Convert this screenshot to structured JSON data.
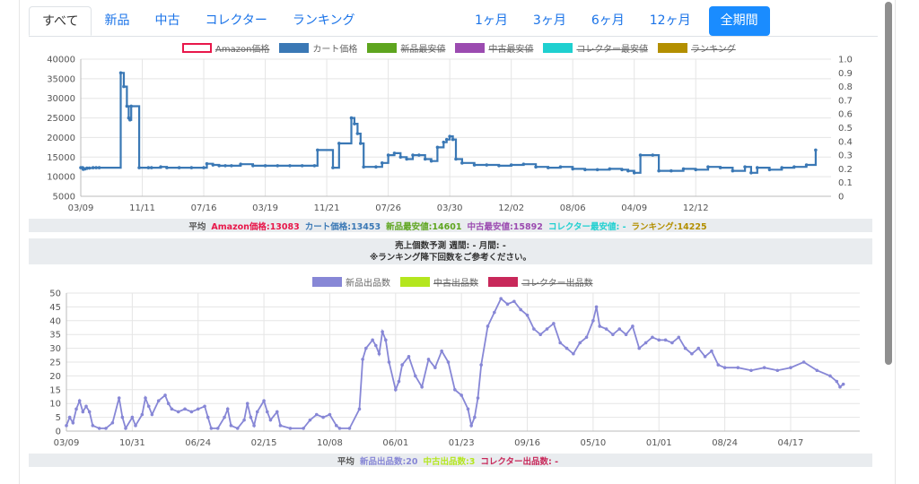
{
  "tabs": [
    "すべて",
    "新品",
    "中古",
    "コレクター",
    "ランキング"
  ],
  "periods": [
    "1ヶ月",
    "3ヶ月",
    "6ヶ月",
    "12ヶ月",
    "全期間"
  ],
  "price_legend": [
    {
      "label": "Amazon価格",
      "color": "#e8174a",
      "hidden": true,
      "outline": true
    },
    {
      "label": "カート価格",
      "color": "#3a78b5",
      "hidden": false
    },
    {
      "label": "新品最安値",
      "color": "#5ea51f",
      "hidden": true
    },
    {
      "label": "中古最安値",
      "color": "#9b4bb0",
      "hidden": true
    },
    {
      "label": "コレクター最安値",
      "color": "#1fd0d0",
      "hidden": true
    },
    {
      "label": "ランキング",
      "color": "#b38f00",
      "hidden": true
    }
  ],
  "price_stats": {
    "prefix": "平均",
    "amazon": "Amazon価格:13083",
    "cart": "カート価格:13453",
    "new": "新品最安値:14601",
    "used": "中古最安値:15892",
    "collector": "コレクター最安値: -",
    "ranking": "ランキング:14225"
  },
  "forecast": {
    "line1": "売上個数予測 週間: - 月間: -",
    "line2": "※ランキング降下回数をご参考ください。"
  },
  "count_legend": [
    {
      "label": "新品出品数",
      "color": "#8787d6",
      "hidden": false
    },
    {
      "label": "中古出品数",
      "color": "#b4e61e",
      "hidden": true
    },
    {
      "label": "コレクター出品数",
      "color": "#c8285a",
      "hidden": true
    }
  ],
  "count_stats": {
    "prefix": "平均",
    "new": "新品出品数:20",
    "used": "中古出品数:3",
    "collector": "コレクター出品数: -"
  },
  "chart_data": [
    {
      "type": "line",
      "series": [
        {
          "name": "カート価格",
          "color": "#3a78b5"
        }
      ],
      "x_tick_labels": [
        "03/09",
        "11/11",
        "07/16",
        "03/19",
        "11/21",
        "07/26",
        "03/30",
        "12/02",
        "08/06",
        "04/09",
        "12/12"
      ],
      "y_ticks": [
        5000,
        10000,
        15000,
        20000,
        25000,
        30000,
        35000,
        40000
      ],
      "ylim": [
        5000,
        40000
      ],
      "y2_ticks": [
        "0",
        "0.1",
        "0.2",
        "0.3",
        "0.4",
        "0.5",
        "0.6",
        "0.7",
        "0.8",
        "0.9",
        "1.0"
      ],
      "y2lim": [
        0,
        1
      ],
      "points": [
        [
          0,
          12300
        ],
        [
          0.03,
          12300
        ],
        [
          0.04,
          11900
        ],
        [
          0.07,
          12000
        ],
        [
          0.1,
          12200
        ],
        [
          0.14,
          12200
        ],
        [
          0.2,
          12300
        ],
        [
          0.25,
          12300
        ],
        [
          0.3,
          12300
        ],
        [
          0.65,
          36500
        ],
        [
          0.7,
          33000
        ],
        [
          0.75,
          28000
        ],
        [
          0.78,
          25000
        ],
        [
          0.8,
          24500
        ],
        [
          0.82,
          28000
        ],
        [
          0.95,
          12300
        ],
        [
          1.1,
          12300
        ],
        [
          1.15,
          12300
        ],
        [
          1.3,
          12500
        ],
        [
          1.4,
          12300
        ],
        [
          1.6,
          12300
        ],
        [
          1.8,
          12300
        ],
        [
          2.0,
          12300
        ],
        [
          2.05,
          13300
        ],
        [
          2.15,
          13000
        ],
        [
          2.25,
          12800
        ],
        [
          2.35,
          12800
        ],
        [
          2.45,
          12800
        ],
        [
          2.6,
          13200
        ],
        [
          2.8,
          12800
        ],
        [
          3.0,
          12800
        ],
        [
          3.2,
          12800
        ],
        [
          3.4,
          12800
        ],
        [
          3.6,
          12800
        ],
        [
          3.8,
          12800
        ],
        [
          3.85,
          16800
        ],
        [
          4.1,
          12300
        ],
        [
          4.2,
          18500
        ],
        [
          4.4,
          25000
        ],
        [
          4.45,
          23500
        ],
        [
          4.5,
          21000
        ],
        [
          4.55,
          18500
        ],
        [
          4.6,
          12500
        ],
        [
          4.8,
          12500
        ],
        [
          4.9,
          13500
        ],
        [
          5.0,
          15500
        ],
        [
          5.1,
          16000
        ],
        [
          5.2,
          15000
        ],
        [
          5.3,
          14500
        ],
        [
          5.4,
          15500
        ],
        [
          5.5,
          15500
        ],
        [
          5.6,
          14500
        ],
        [
          5.7,
          14000
        ],
        [
          5.8,
          17500
        ],
        [
          5.9,
          18800
        ],
        [
          5.95,
          19500
        ],
        [
          6.0,
          20300
        ],
        [
          6.05,
          19500
        ],
        [
          6.1,
          14500
        ],
        [
          6.2,
          13500
        ],
        [
          6.4,
          13000
        ],
        [
          6.6,
          13000
        ],
        [
          6.8,
          12800
        ],
        [
          7.0,
          13000
        ],
        [
          7.2,
          13200
        ],
        [
          7.4,
          12500
        ],
        [
          7.6,
          12300
        ],
        [
          7.8,
          12500
        ],
        [
          8.0,
          12000
        ],
        [
          8.2,
          11800
        ],
        [
          8.4,
          11800
        ],
        [
          8.6,
          12000
        ],
        [
          8.8,
          11800
        ],
        [
          8.9,
          11500
        ],
        [
          9.0,
          11000
        ],
        [
          9.1,
          15500
        ],
        [
          9.3,
          15500
        ],
        [
          9.4,
          11500
        ],
        [
          9.6,
          11500
        ],
        [
          9.8,
          12000
        ],
        [
          10.0,
          11800
        ],
        [
          10.2,
          12500
        ],
        [
          10.4,
          12300
        ],
        [
          10.6,
          11500
        ],
        [
          10.8,
          12500
        ],
        [
          10.9,
          11000
        ],
        [
          11.0,
          12300
        ],
        [
          11.2,
          11800
        ],
        [
          11.4,
          12300
        ],
        [
          11.6,
          12500
        ],
        [
          11.8,
          13000
        ],
        [
          11.95,
          16800
        ]
      ]
    },
    {
      "type": "line",
      "series": [
        {
          "name": "新品出品数",
          "color": "#8787d6"
        }
      ],
      "x_tick_labels": [
        "03/09",
        "10/31",
        "06/24",
        "02/15",
        "10/08",
        "06/01",
        "01/23",
        "09/16",
        "05/10",
        "01/01",
        "08/24",
        "04/17"
      ],
      "y_ticks": [
        0,
        5,
        10,
        15,
        20,
        25,
        30,
        35,
        40,
        45,
        50
      ],
      "ylim": [
        0,
        50
      ],
      "points": [
        [
          0,
          2
        ],
        [
          0.05,
          5
        ],
        [
          0.1,
          3
        ],
        [
          0.15,
          8
        ],
        [
          0.2,
          11
        ],
        [
          0.25,
          7
        ],
        [
          0.3,
          9
        ],
        [
          0.35,
          7
        ],
        [
          0.4,
          2
        ],
        [
          0.5,
          1
        ],
        [
          0.6,
          1
        ],
        [
          0.7,
          3
        ],
        [
          0.8,
          12
        ],
        [
          0.85,
          5
        ],
        [
          0.9,
          1
        ],
        [
          1.0,
          5
        ],
        [
          1.05,
          2
        ],
        [
          1.15,
          6
        ],
        [
          1.2,
          12
        ],
        [
          1.25,
          9
        ],
        [
          1.3,
          6
        ],
        [
          1.4,
          11
        ],
        [
          1.5,
          13
        ],
        [
          1.55,
          10
        ],
        [
          1.6,
          8
        ],
        [
          1.7,
          7
        ],
        [
          1.8,
          8
        ],
        [
          1.9,
          7
        ],
        [
          2.0,
          8
        ],
        [
          2.1,
          9
        ],
        [
          2.15,
          5
        ],
        [
          2.2,
          1
        ],
        [
          2.3,
          1
        ],
        [
          2.4,
          5
        ],
        [
          2.45,
          8
        ],
        [
          2.5,
          2
        ],
        [
          2.6,
          1
        ],
        [
          2.7,
          4
        ],
        [
          2.75,
          10
        ],
        [
          2.8,
          5
        ],
        [
          2.85,
          2
        ],
        [
          2.9,
          7
        ],
        [
          3.0,
          11
        ],
        [
          3.05,
          7
        ],
        [
          3.1,
          4
        ],
        [
          3.2,
          7
        ],
        [
          3.25,
          2
        ],
        [
          3.4,
          1
        ],
        [
          3.6,
          1
        ],
        [
          3.7,
          4
        ],
        [
          3.8,
          6
        ],
        [
          3.9,
          5
        ],
        [
          4.0,
          6
        ],
        [
          4.1,
          2
        ],
        [
          4.15,
          1
        ],
        [
          4.3,
          1
        ],
        [
          4.45,
          8
        ],
        [
          4.5,
          26
        ],
        [
          4.55,
          30
        ],
        [
          4.65,
          33
        ],
        [
          4.7,
          31
        ],
        [
          4.75,
          28
        ],
        [
          4.8,
          36
        ],
        [
          4.85,
          33
        ],
        [
          4.9,
          25
        ],
        [
          5.0,
          15
        ],
        [
          5.05,
          18
        ],
        [
          5.1,
          24
        ],
        [
          5.2,
          27
        ],
        [
          5.3,
          20
        ],
        [
          5.4,
          16
        ],
        [
          5.5,
          26
        ],
        [
          5.6,
          23
        ],
        [
          5.7,
          29
        ],
        [
          5.8,
          25
        ],
        [
          5.9,
          15
        ],
        [
          6.0,
          13
        ],
        [
          6.1,
          8
        ],
        [
          6.15,
          2
        ],
        [
          6.2,
          5
        ],
        [
          6.25,
          12
        ],
        [
          6.3,
          24
        ],
        [
          6.4,
          38
        ],
        [
          6.5,
          43
        ],
        [
          6.6,
          48
        ],
        [
          6.7,
          46
        ],
        [
          6.8,
          47
        ],
        [
          6.9,
          44
        ],
        [
          7.0,
          42
        ],
        [
          7.1,
          37
        ],
        [
          7.2,
          35
        ],
        [
          7.3,
          37
        ],
        [
          7.4,
          39
        ],
        [
          7.5,
          32
        ],
        [
          7.6,
          30
        ],
        [
          7.7,
          28
        ],
        [
          7.8,
          32
        ],
        [
          7.9,
          34
        ],
        [
          8.0,
          40
        ],
        [
          8.05,
          45
        ],
        [
          8.1,
          38
        ],
        [
          8.2,
          37
        ],
        [
          8.3,
          35
        ],
        [
          8.4,
          37
        ],
        [
          8.5,
          35
        ],
        [
          8.6,
          38
        ],
        [
          8.7,
          30
        ],
        [
          8.8,
          32
        ],
        [
          8.9,
          34
        ],
        [
          9.0,
          33
        ],
        [
          9.1,
          33
        ],
        [
          9.2,
          32
        ],
        [
          9.3,
          34
        ],
        [
          9.4,
          30
        ],
        [
          9.5,
          28
        ],
        [
          9.6,
          30
        ],
        [
          9.7,
          27
        ],
        [
          9.8,
          29
        ],
        [
          9.9,
          24
        ],
        [
          10.0,
          23
        ],
        [
          10.2,
          23
        ],
        [
          10.4,
          22
        ],
        [
          10.6,
          23
        ],
        [
          10.8,
          22
        ],
        [
          11.0,
          23
        ],
        [
          11.2,
          25
        ],
        [
          11.4,
          22
        ],
        [
          11.6,
          20
        ],
        [
          11.7,
          18
        ],
        [
          11.75,
          16
        ],
        [
          11.8,
          17
        ]
      ]
    }
  ]
}
